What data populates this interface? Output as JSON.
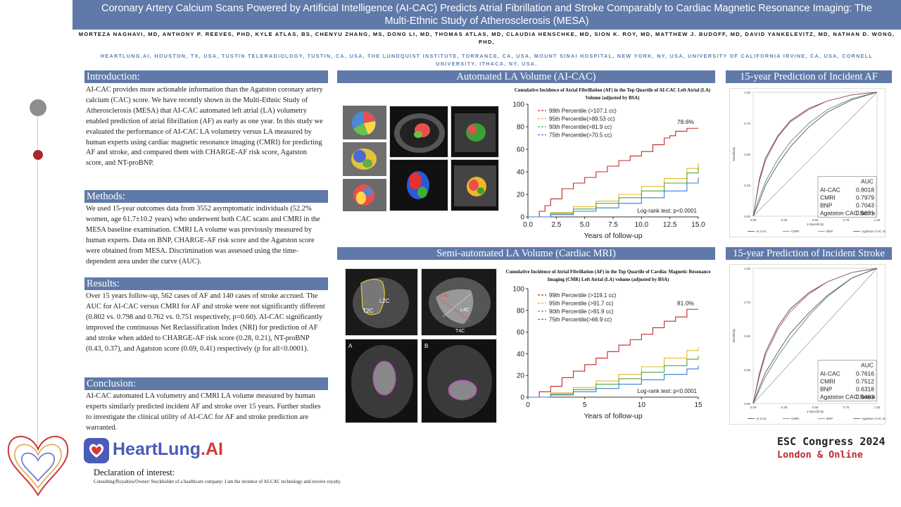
{
  "header": {
    "title": "Coronary Artery Calcium Scans Powered by Artificial Intelligence (AI-CAC) Predicts Atrial Fibrillation and Stroke Comparably to Cardiac Magnetic Resonance Imaging: The Multi-Ethnic Study of Atherosclerosis (MESA)",
    "authors": "MORTEZA NAGHAVI, MD, ANTHONY P. REEVES, PHD,  KYLE ATLAS, BS, CHENYU ZHANG, MS, DONG LI, MD, THOMAS ATLAS, MD, CLAUDIA HENSCHKE, MD, SION K. ROY, MD, MATTHEW J. BUDOFF, MD, DAVID YANKELEVITZ, MD, NATHAN D. WONG, PHD,",
    "affiliations": "HEARTLUNG.AI, HOUSTON, TX, USA, TUSTIN TELERADIOLOGY, TUSTIN, CA, USA, THE LUNDQUIST INSTITUTE, TORRANCE, CA, USA, MOUNT SINAI HOSPITAL, NEW YORK, NY, USA, UNIVERSITY OF CALIFORNIA IRVINE, CA, USA, CORNELL UNIVERSITY, ITHACA, NY, USA."
  },
  "sections": {
    "introduction": {
      "title": "Introduction:",
      "text": " AI-CAC provides more actionable information than the Agatston coronary artery calcium (CAC) score. We have recently shown in the Multi-Ethnic Study of Atherosclerosis (MESA) that AI-CAC automated left atrial (LA) volumetry enabled prediction of atrial fibrillation (AF) as early as one year. In this study we evaluated the performance of AI-CAC LA volumetry versus LA measured by human experts using cardiac magnetic resonance imaging (CMRI) for predicting AF and stroke, and compared them with CHARGE-AF risk score, Agatston score, and NT-proBNP."
    },
    "methods": {
      "title": "Methods:",
      "text": "We used 15-year outcomes data from 3552 asymptomatic individuals (52.2% women, age 61.7±10.2 years) who underwent both CAC scans and CMRI in the MESA baseline examination. CMRI LA volume was previously measured by human experts. Data on BNP, CHARGE-AF risk score and the Agatston score were obtained from MESA. Discrimination was assessed using the time-dependent area under the curve (AUC)."
    },
    "results": {
      "title": "Results:",
      "text": "Over 15 years follow-up, 562 cases of AF and 140 cases of stroke accrued. The AUC for AI-CAC versus CMRI for AF and stroke were not significantly different (0.802 vs. 0.798 and 0.762 vs. 0.751 respectively, p=0.60). AI-CAC significantly improved the continuous Net Reclassification Index (NRI) for prediction of AF and stroke when added to CHARGE-AF risk score (0.28, 0.21), NT-proBNP (0.43, 0.37), and Agatston score (0.69, 0.41) respectively (p for all<0.0001)."
    },
    "conclusion": {
      "title": "Conclusion:",
      "text": "AI-CAC automated LA volumetry and CMRI LA volume measured by human experts similarly predicted incident AF and stroke over 15 years. Further studies to investigate the clinical utility of AI-CAC for AF and stroke prediction are warranted."
    }
  },
  "panels": {
    "aicac": "Automated LA Volume (AI-CAC)",
    "cmri": "Semi-automated LA Volume (Cardiac MRI)",
    "roc_af": "15-year Prediction of Incident AF",
    "roc_stroke": "15-year Prediction of Incident Stroke"
  },
  "mri_labels": {
    "l2c": "L2C",
    "t2c": "T2C",
    "l4c": "L4C",
    "t4c": "T4C",
    "a": "A",
    "b": "B"
  },
  "colors": {
    "p99": "#c0282c",
    "p95": "#e8b82a",
    "p90": "#4aaa3a",
    "p75": "#3a7bd5",
    "accent": "#5f79a8"
  },
  "chart_data": [
    {
      "type": "line",
      "title": "Cumulative Incidence of Atrial Fibrillation (AF) in the Top Quartile of AI-CAC Left Atrial (LA) Volume (adjusted by BSA)",
      "xlabel": "Years of follow-up",
      "ylabel": "",
      "xlim": [
        0,
        15
      ],
      "ylim": [
        0,
        100
      ],
      "xticks": [
        "0.0",
        "2.5",
        "5.0",
        "7.5",
        "10.0",
        "12.5",
        "15.0"
      ],
      "yticks": [
        "0",
        "20",
        "40",
        "60",
        "80",
        "100"
      ],
      "annotation": "78.6%",
      "footnote": "Log-rank test: p<0.0001",
      "series": [
        {
          "name": "99th Percentile (>107.1 cc)",
          "color": "#c0282c",
          "x": [
            0,
            1,
            1.5,
            2,
            3,
            4,
            5,
            6,
            7,
            8,
            9,
            10,
            11,
            12,
            12.5,
            13,
            14,
            15
          ],
          "y": [
            0,
            5,
            10,
            16,
            25,
            30,
            35,
            40,
            45,
            50,
            54,
            58,
            64,
            70,
            72,
            76,
            78.6,
            78.6
          ]
        },
        {
          "name": "95th Percentile(>89.53 cc)",
          "color": "#e8b82a",
          "x": [
            0,
            2,
            4,
            6,
            8,
            10,
            12,
            14,
            15
          ],
          "y": [
            0,
            4,
            9,
            14,
            20,
            27,
            34,
            43,
            48
          ]
        },
        {
          "name": "90th Percentile(>81.9 cc)",
          "color": "#4aaa3a",
          "x": [
            0,
            2,
            4,
            6,
            8,
            10,
            12,
            14,
            15
          ],
          "y": [
            0,
            3,
            7,
            12,
            17,
            23,
            30,
            39,
            44
          ]
        },
        {
          "name": "75th Percentile(>70.5 cc)",
          "color": "#3a7bd5",
          "x": [
            0,
            2,
            4,
            6,
            8,
            10,
            12,
            14,
            15
          ],
          "y": [
            0,
            2,
            5,
            8,
            12,
            17,
            23,
            30,
            35
          ]
        }
      ]
    },
    {
      "type": "line",
      "title": "Cumulative Incidence of Atrial Fibrillation (AF) in the Top Quartile of Cardiac Magnetic Resonance Imaging (CMR) Left Atrial (LA) volume (adjusted by BSA)",
      "xlabel": "Years of follow-up",
      "ylabel": "",
      "xlim": [
        0,
        15
      ],
      "ylim": [
        0,
        100
      ],
      "xticks": [
        "0",
        "5",
        "10",
        "15"
      ],
      "yticks": [
        "0",
        "20",
        "40",
        "60",
        "80",
        "100"
      ],
      "annotation": "81.0%",
      "footnote": "Log-rank test: p<0.0001",
      "series": [
        {
          "name": "99th Percentile (>119.1 cc)",
          "color": "#c0282c",
          "x": [
            0,
            1,
            2,
            3,
            4,
            5,
            6,
            7,
            8,
            9,
            10,
            11,
            12,
            13,
            14,
            15
          ],
          "y": [
            0,
            5,
            10,
            18,
            24,
            30,
            36,
            42,
            48,
            53,
            58,
            64,
            70,
            74,
            81,
            81
          ]
        },
        {
          "name": "95th Percentile (>91.7 cc)",
          "color": "#e8b82a",
          "x": [
            0,
            2,
            4,
            6,
            8,
            10,
            12,
            14,
            15
          ],
          "y": [
            0,
            4,
            9,
            15,
            21,
            28,
            36,
            43,
            46
          ]
        },
        {
          "name": "90th Percentile (>81.9 cc)",
          "color": "#4aaa3a",
          "x": [
            0,
            2,
            4,
            6,
            8,
            10,
            12,
            14,
            15
          ],
          "y": [
            0,
            3,
            7,
            12,
            17,
            23,
            29,
            35,
            38
          ]
        },
        {
          "name": "75th Percentile(>66.9 cc)",
          "color": "#3a7bd5",
          "x": [
            0,
            2,
            4,
            6,
            8,
            10,
            12,
            14,
            15
          ],
          "y": [
            0,
            2,
            5,
            8,
            12,
            16,
            21,
            26,
            29
          ]
        }
      ]
    },
    {
      "type": "line",
      "title": "",
      "xlabel": "1-Specificity",
      "ylabel": "Sensitivity",
      "xlim": [
        0,
        1
      ],
      "ylim": [
        0,
        1
      ],
      "xticks": [
        "0.00",
        "0.25",
        "0.50",
        "0.75",
        "1.00"
      ],
      "yticks": [
        "0.00",
        "0.25",
        "0.50",
        "0.75",
        "1.00"
      ],
      "auc_header": "AUC",
      "auc": [
        {
          "name": "AI-CAC",
          "value": "0.8018"
        },
        {
          "name": "CMRI",
          "value": "0.7979"
        },
        {
          "name": "BNP",
          "value": "0.7043"
        },
        {
          "name": "Agatston CAC Score",
          "value": "0.6871"
        }
      ],
      "legend": [
        "AI-CAC",
        "CMRI",
        "BNP",
        "Agatston CAC Score"
      ],
      "series": [
        {
          "name": "AI-CAC",
          "color": "#7a3030",
          "x": [
            0,
            0.05,
            0.1,
            0.2,
            0.3,
            0.45,
            0.6,
            0.8,
            1
          ],
          "y": [
            0,
            0.3,
            0.47,
            0.65,
            0.77,
            0.87,
            0.93,
            0.98,
            1
          ]
        },
        {
          "name": "CMRI",
          "color": "#9a6a7a",
          "x": [
            0,
            0.05,
            0.1,
            0.2,
            0.3,
            0.45,
            0.6,
            0.8,
            1
          ],
          "y": [
            0,
            0.28,
            0.45,
            0.64,
            0.76,
            0.86,
            0.93,
            0.98,
            1
          ]
        },
        {
          "name": "BNP",
          "color": "#5a8a8a",
          "x": [
            0,
            0.05,
            0.1,
            0.2,
            0.3,
            0.45,
            0.6,
            0.8,
            1
          ],
          "y": [
            0,
            0.15,
            0.28,
            0.46,
            0.6,
            0.75,
            0.86,
            0.95,
            1
          ]
        },
        {
          "name": "Agatston CAC Score",
          "color": "#555555",
          "x": [
            0,
            0.05,
            0.1,
            0.2,
            0.3,
            0.45,
            0.6,
            0.8,
            1
          ],
          "y": [
            0,
            0.12,
            0.25,
            0.42,
            0.56,
            0.72,
            0.84,
            0.94,
            1
          ]
        }
      ]
    },
    {
      "type": "line",
      "title": "",
      "xlabel": "1-Specificity",
      "ylabel": "Sensitivity",
      "xlim": [
        0,
        1
      ],
      "ylim": [
        0,
        1
      ],
      "xticks": [
        "0.00",
        "0.25",
        "0.50",
        "0.75",
        "1.00"
      ],
      "yticks": [
        "0.00",
        "0.25",
        "0.50",
        "0.75",
        "1.00"
      ],
      "auc_header": "AUC",
      "auc": [
        {
          "name": "AI-CAC",
          "value": "0.7616"
        },
        {
          "name": "CMRI",
          "value": "0.7512"
        },
        {
          "name": "BNP",
          "value": "0.6318"
        },
        {
          "name": "Agatston CAC Score",
          "value": "0.6463"
        }
      ],
      "legend": [
        "AI-CAC",
        "CMRI",
        "BNP",
        "Agatston CAC Score"
      ],
      "series": [
        {
          "name": "AI-CAC",
          "color": "#7a3030",
          "x": [
            0,
            0.05,
            0.1,
            0.2,
            0.3,
            0.45,
            0.6,
            0.8,
            1
          ],
          "y": [
            0,
            0.22,
            0.38,
            0.57,
            0.7,
            0.82,
            0.9,
            0.97,
            1
          ]
        },
        {
          "name": "CMRI",
          "color": "#9a6a7a",
          "x": [
            0,
            0.05,
            0.1,
            0.2,
            0.3,
            0.45,
            0.6,
            0.8,
            1
          ],
          "y": [
            0,
            0.2,
            0.36,
            0.55,
            0.68,
            0.81,
            0.9,
            0.97,
            1
          ]
        },
        {
          "name": "BNP",
          "color": "#5a8a8a",
          "x": [
            0,
            0.05,
            0.1,
            0.2,
            0.3,
            0.45,
            0.6,
            0.8,
            1
          ],
          "y": [
            0,
            0.1,
            0.2,
            0.35,
            0.48,
            0.65,
            0.79,
            0.93,
            1
          ]
        },
        {
          "name": "Agatston CAC Score",
          "color": "#555555",
          "x": [
            0,
            0.05,
            0.1,
            0.2,
            0.3,
            0.45,
            0.6,
            0.8,
            1
          ],
          "y": [
            0,
            0.12,
            0.23,
            0.38,
            0.52,
            0.67,
            0.8,
            0.93,
            1
          ]
        }
      ]
    }
  ],
  "footer": {
    "logo_main": "HeartLung",
    "logo_suffix": ".AI",
    "declaration_title": "Declaration of interest:",
    "declaration_text": "Consulting/Royalties/Owner/ Stockholder of a healthcare company: I am the inventor of AI-CAC technology and receive royalty.",
    "congress_line1": "ESC Congress 2024",
    "congress_line2": "London & Online"
  }
}
